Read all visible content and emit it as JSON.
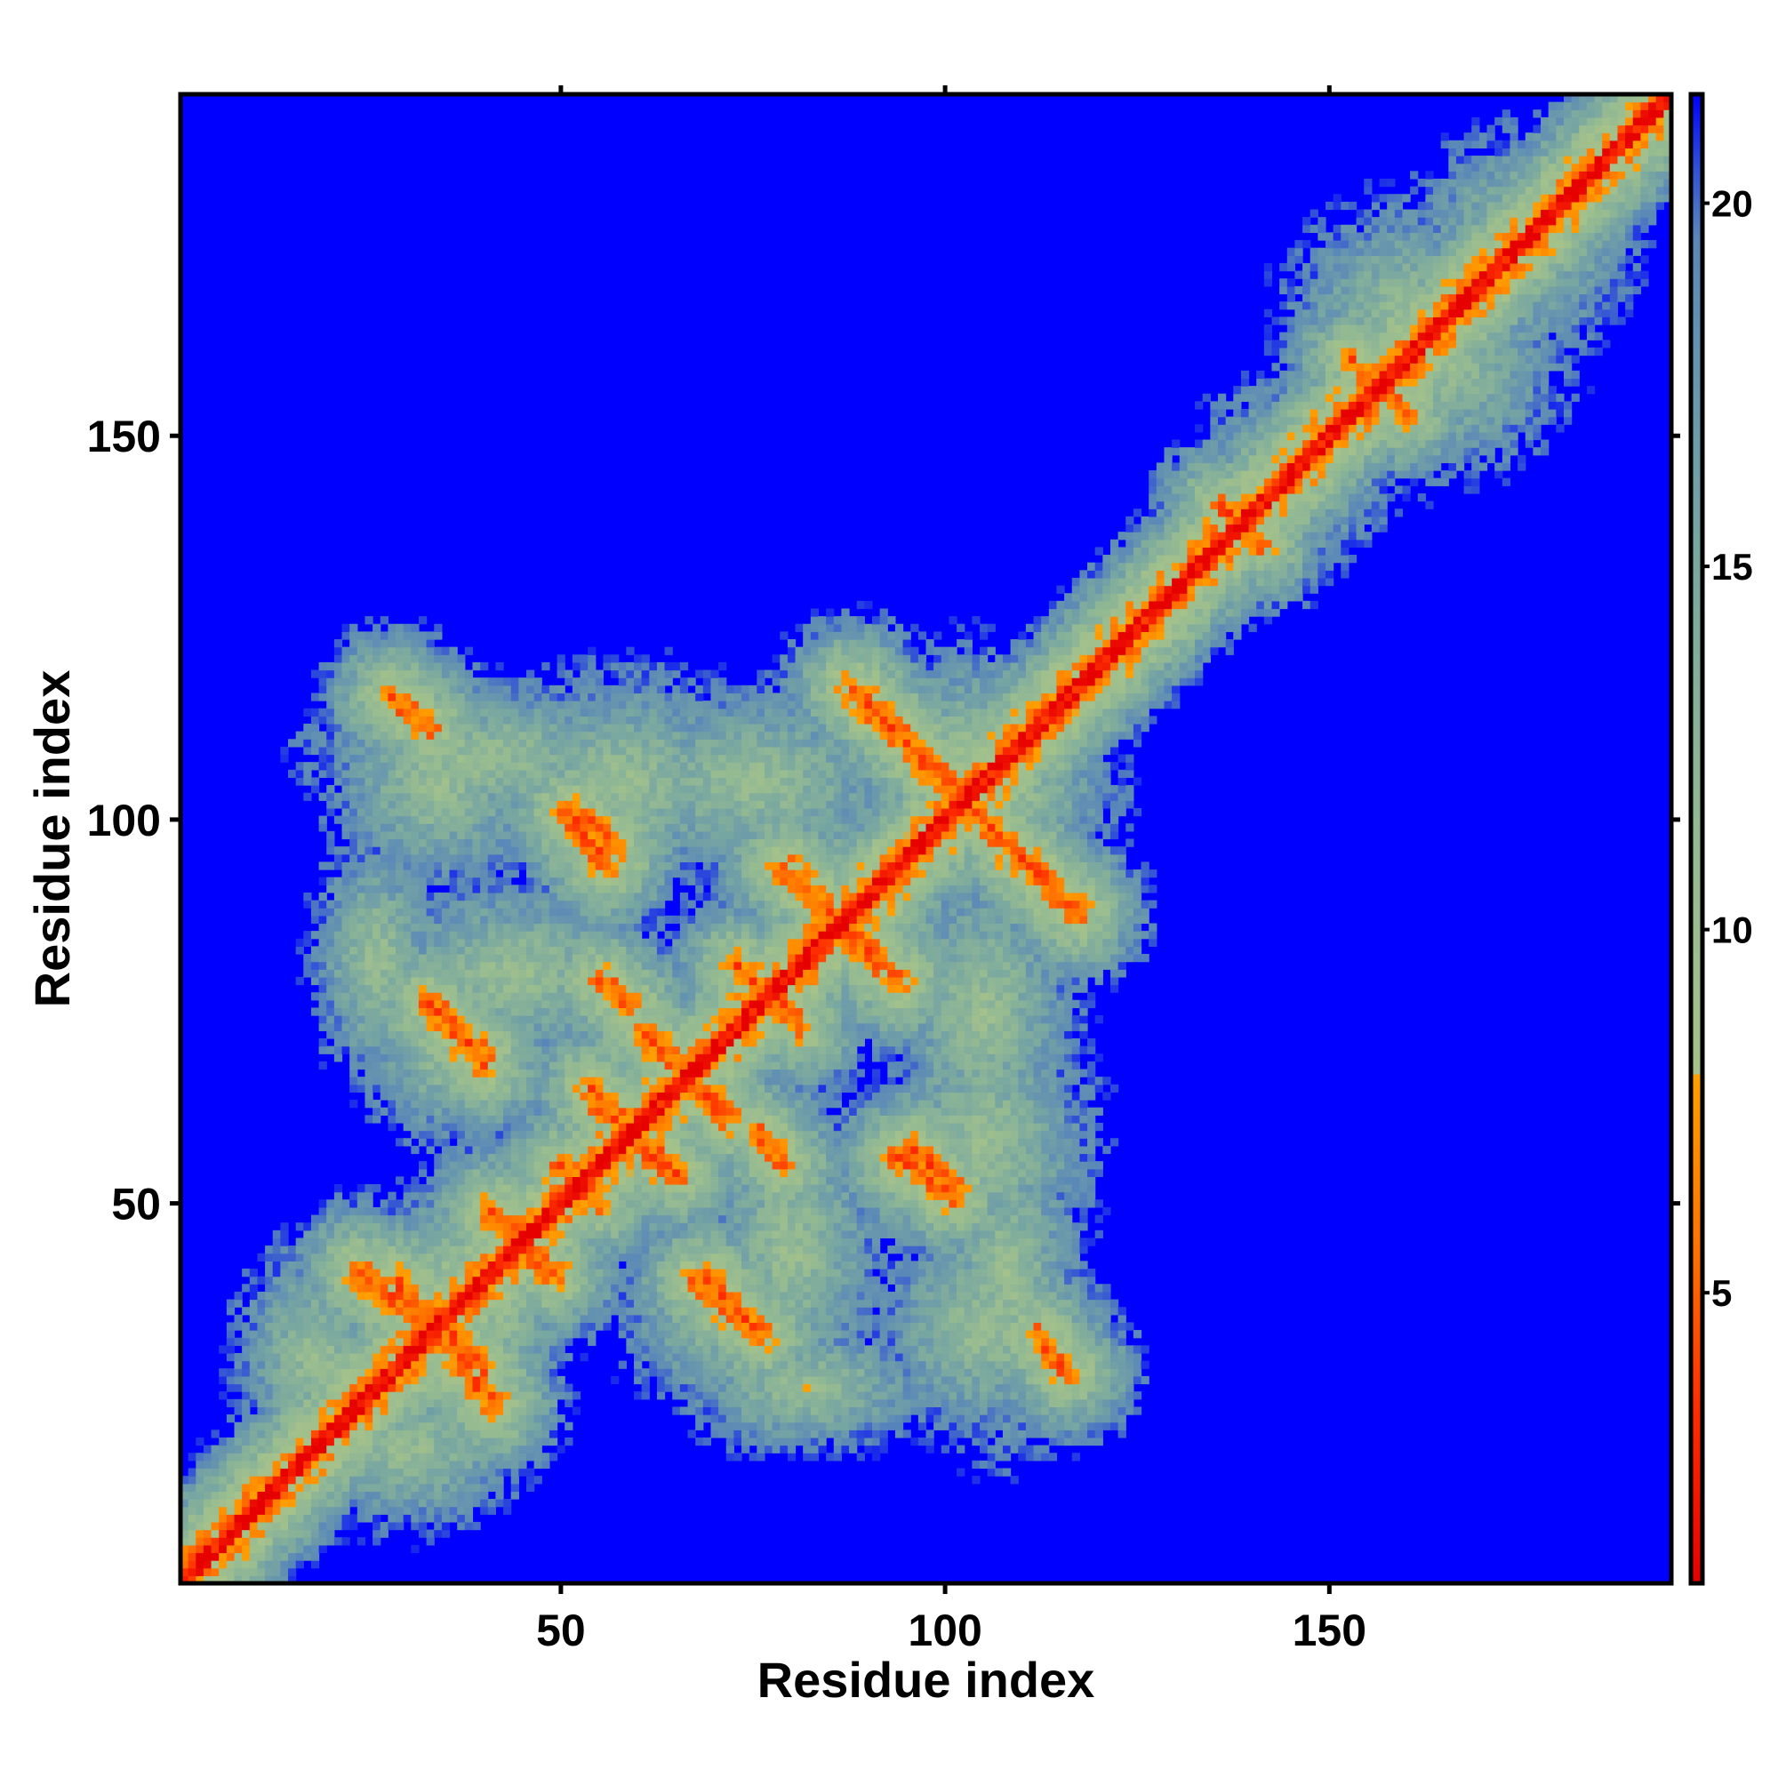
{
  "chart_data": {
    "type": "heatmap",
    "title": "",
    "xlabel": "Residue index",
    "ylabel": "Residue index",
    "n_residues": 194,
    "xlim": [
      1,
      194
    ],
    "ylim": [
      1,
      194
    ],
    "x_ticks": [
      50,
      100,
      150
    ],
    "y_ticks": [
      50,
      100,
      150
    ],
    "colorbar": {
      "range": [
        1,
        21.5
      ],
      "ticks": [
        5,
        10,
        15,
        20
      ],
      "stops": [
        {
          "value": 1.0,
          "color": "#e60000"
        },
        {
          "value": 3.5,
          "color": "#ff3000"
        },
        {
          "value": 5.5,
          "color": "#ff7000"
        },
        {
          "value": 8.0,
          "color": "#ffa000"
        },
        {
          "value": 8.01,
          "color": "#a6c28a"
        },
        {
          "value": 11.0,
          "color": "#95ba92"
        },
        {
          "value": 15.0,
          "color": "#7aa8a0"
        },
        {
          "value": 19.5,
          "color": "#5a88b8"
        },
        {
          "value": 20.5,
          "color": "#3050d8"
        },
        {
          "value": 21.5,
          "color": "#0000ff"
        }
      ]
    },
    "cutoff": 21,
    "background_color": "#0000ff",
    "diagonal": {
      "from": 1,
      "to": 194,
      "width": 2.2
    },
    "contact_segments": [
      {
        "from": [
          33,
          36
        ],
        "to": [
          40,
          28
        ],
        "width": 3.2
      },
      {
        "from": [
          24,
          41
        ],
        "to": [
          33,
          34
        ],
        "width": 3.2
      },
      {
        "from": [
          33,
          76
        ],
        "to": [
          40,
          69
        ],
        "width": 2.8
      },
      {
        "from": [
          41,
          49
        ],
        "to": [
          46,
          44
        ],
        "width": 2.8
      },
      {
        "from": [
          50,
          55
        ],
        "to": [
          53,
          51
        ],
        "width": 2.2
      },
      {
        "from": [
          52,
          101
        ],
        "to": [
          57,
          96
        ],
        "width": 2.8
      },
      {
        "from": [
          54,
          65
        ],
        "to": [
          63,
          55
        ],
        "width": 2.8
      },
      {
        "from": [
          55,
          79
        ],
        "to": [
          59,
          76
        ],
        "width": 2.2
      },
      {
        "from": [
          61,
          72
        ],
        "to": [
          71,
          62
        ],
        "width": 2.8
      },
      {
        "from": [
          68,
          40
        ],
        "to": [
          76,
          33
        ],
        "width": 3.0
      },
      {
        "from": [
          73,
          81
        ],
        "to": [
          79,
          76
        ],
        "width": 2.4
      },
      {
        "from": [
          79,
          94
        ],
        "to": [
          94,
          79
        ],
        "width": 3.0
      },
      {
        "from": [
          88,
          117
        ],
        "to": [
          117,
          88
        ],
        "width": 3.2
      },
      {
        "from": [
          94,
          56
        ],
        "to": [
          101,
          51
        ],
        "width": 2.8
      },
      {
        "from": [
          112,
          33
        ],
        "to": [
          116,
          28
        ],
        "width": 2.4
      },
      {
        "from": [
          136,
          141
        ],
        "to": [
          141,
          136
        ],
        "width": 2.2
      },
      {
        "from": [
          155,
          158
        ],
        "to": [
          160,
          153
        ],
        "width": 2.2
      }
    ],
    "halo_regions": [
      {
        "center": [
          36,
          42
        ],
        "radius": [
          13,
          10
        ]
      },
      {
        "center": [
          44,
          80
        ],
        "radius": [
          20,
          12
        ]
      },
      {
        "center": [
          60,
          60
        ],
        "radius": [
          16,
          16
        ]
      },
      {
        "center": [
          70,
          36
        ],
        "radius": [
          12,
          12
        ]
      },
      {
        "center": [
          86,
          90
        ],
        "radius": [
          14,
          14
        ]
      },
      {
        "center": [
          105,
          58
        ],
        "radius": [
          14,
          18
        ]
      },
      {
        "center": [
          108,
          103
        ],
        "radius": [
          14,
          14
        ]
      },
      {
        "center": [
          105,
          34
        ],
        "radius": [
          14,
          14
        ]
      },
      {
        "center": [
          82,
          26
        ],
        "radius": [
          16,
          8
        ]
      },
      {
        "center": [
          40,
          108
        ],
        "radius": [
          22,
          10
        ]
      },
      {
        "center": [
          75,
          105
        ],
        "radius": [
          20,
          12
        ]
      },
      {
        "center": [
          30,
          18
        ],
        "radius": [
          15,
          10
        ]
      },
      {
        "center": [
          165,
          160
        ],
        "radius": [
          15,
          15
        ]
      },
      {
        "center": [
          175,
          175
        ],
        "radius": [
          14,
          14
        ]
      },
      {
        "center": [
          145,
          145
        ],
        "radius": [
          12,
          12
        ]
      }
    ]
  }
}
